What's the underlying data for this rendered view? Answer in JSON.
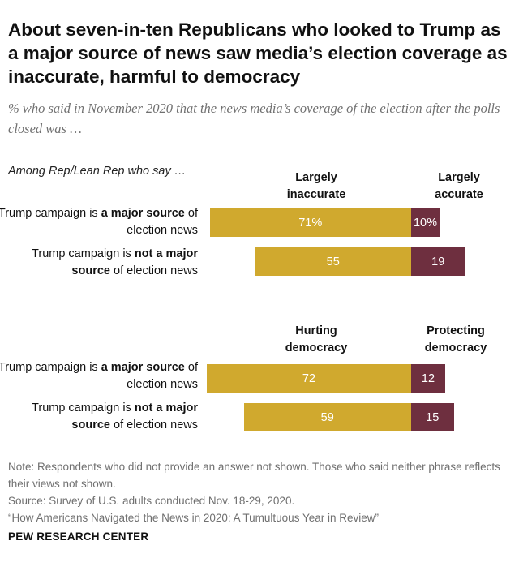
{
  "title": "About seven-in-ten Republicans who looked to Trump as a major source of news saw media’s election coverage as inaccurate, harmful to democracy",
  "subtitle": "% who said in November 2020 that the news media’s coverage of the election after the polls closed was …",
  "group_label": "Among Rep/Lean Rep who say …",
  "rows": {
    "major": {
      "pre": "Trump campaign is ",
      "bold": "a major source",
      "post": " of election news"
    },
    "not_major": {
      "pre": "Trump campaign is ",
      "bold": "not a major source",
      "post": " of election news"
    }
  },
  "colors": {
    "negative": "#d0a92e",
    "positive": "#6e2f3f"
  },
  "chart_data": [
    {
      "type": "bar",
      "orientation": "horizontal-diverging",
      "categories": [
        "Trump campaign is a major source of election news",
        "Trump campaign is not a major source of election news"
      ],
      "series": [
        {
          "name": "Largely inaccurate",
          "values": [
            71,
            55
          ],
          "labels": [
            "71%",
            "55"
          ]
        },
        {
          "name": "Largely accurate",
          "values": [
            10,
            19
          ],
          "labels": [
            "10%",
            "19"
          ]
        }
      ]
    },
    {
      "type": "bar",
      "orientation": "horizontal-diverging",
      "categories": [
        "Trump campaign is a major source of election news",
        "Trump campaign is not a major source of election news"
      ],
      "series": [
        {
          "name": "Hurting democracy",
          "values": [
            72,
            59
          ],
          "labels": [
            "72",
            "59"
          ]
        },
        {
          "name": "Protecting democracy",
          "values": [
            12,
            15
          ],
          "labels": [
            "12",
            "15"
          ]
        }
      ]
    }
  ],
  "footer": {
    "note": "Note: Respondents who did not provide an answer not shown. Those who said neither phrase reflects their views not shown.",
    "source": "Source: Survey of U.S. adults conducted Nov. 18-29, 2020.",
    "report": "“How Americans Navigated the News in 2020: A Tumultuous Year in Review”",
    "brand": "PEW RESEARCH CENTER"
  }
}
